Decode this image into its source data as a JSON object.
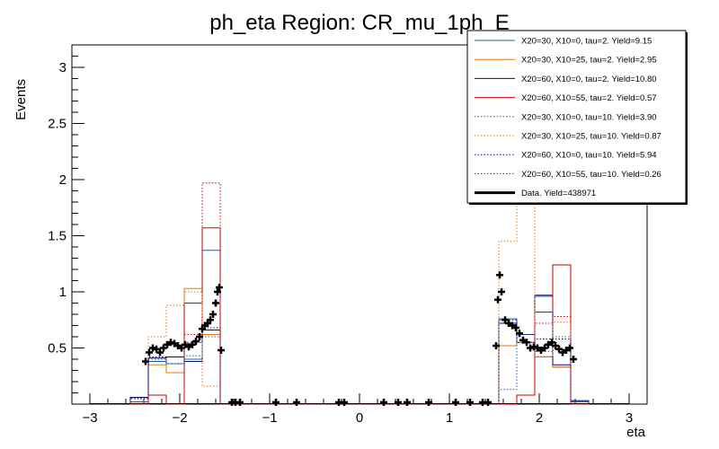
{
  "chart_data": {
    "type": "line",
    "title": "ph_eta Region: CR_mu_1ph_E",
    "xlabel": "eta",
    "ylabel": "Events",
    "xlim": [
      -3.2,
      3.2
    ],
    "ylim": [
      0,
      3.2
    ],
    "x_ticks": [
      -3,
      -2,
      -1,
      0,
      1,
      2,
      3
    ],
    "x_tick_labels": [
      "−3",
      "−2",
      "−1",
      "0",
      "1",
      "2",
      "3"
    ],
    "y_ticks": [
      0.5,
      1,
      1.5,
      2,
      2.5,
      3
    ],
    "y_tick_labels": [
      "0.5",
      "1",
      "1.5",
      "2",
      "2.5",
      "3"
    ],
    "legend_position": "top-right",
    "bin_edges": [
      -2.55,
      -2.35,
      -2.15,
      -1.95,
      -1.75,
      -1.55,
      1.55,
      1.75,
      1.95,
      2.15,
      2.35,
      2.55
    ],
    "series": [
      {
        "name": "X20=30, X10=0, tau=2. Yield=9.15",
        "color": "#1f5fa8",
        "style": "solid",
        "values": [
          0.02,
          0.38,
          0.28,
          0.4,
          1.37,
          0,
          0.76,
          0.55,
          0.96,
          0.33,
          0.02
        ]
      },
      {
        "name": "X20=30, X10=25, tau=2. Yield=2.95",
        "color": "#e8760e",
        "style": "solid",
        "values": [
          0,
          0.35,
          0.28,
          1.03,
          0.62,
          0,
          0.52,
          0.55,
          0.42,
          0.33,
          0
        ]
      },
      {
        "name": "X20=60, X10=0, tau=2. Yield=10.80",
        "color": "#0a0a6e",
        "style": "solid",
        "values": [
          0.06,
          0.41,
          0.42,
          0.38,
          0.66,
          0,
          0.72,
          0.62,
          0.97,
          0.35,
          0.03
        ]
      },
      {
        "name": "X20=60, X10=55, tau=2. Yield=0.57",
        "color": "#cc0000",
        "style": "solid",
        "values": [
          0,
          0.08,
          0,
          0.9,
          1.57,
          0,
          0,
          0.08,
          0.82,
          1.24,
          0
        ]
      },
      {
        "name": "X20=30, X10=0, tau=10. Yield=3.90",
        "color": "#1f5fa8",
        "style": "dotted",
        "values": [
          0.05,
          0.4,
          0.36,
          0.43,
          0.6,
          0,
          0.13,
          0.62,
          0.47,
          0.6,
          0.03
        ]
      },
      {
        "name": "X20=30, X10=25, tau=10. Yield=0.87",
        "color": "#e8760e",
        "style": "dotted",
        "values": [
          0,
          0.6,
          0.88,
          1.0,
          0.16,
          0,
          1.45,
          1.8,
          0.43,
          0.73,
          0
        ]
      },
      {
        "name": "X20=60, X10=0, tau=10. Yield=5.94",
        "color": "#0a0a6e",
        "style": "dotted",
        "values": [
          0.05,
          0.42,
          0.36,
          0.55,
          0.68,
          0,
          0.75,
          0.55,
          0.58,
          0.58,
          0.03
        ]
      },
      {
        "name": "X20=60, X10=55, tau=10. Yield=0.26",
        "color": "#cc0000",
        "style": "dotted",
        "values": [
          0,
          0.08,
          0,
          0.62,
          1.97,
          0,
          0,
          0.08,
          0.72,
          0.78,
          0
        ]
      }
    ],
    "data_series": {
      "name": "Data. Yield=438971",
      "color": "#000000",
      "points": [
        [
          -2.38,
          0.38
        ],
        [
          -2.34,
          0.46
        ],
        [
          -2.3,
          0.5
        ],
        [
          -2.26,
          0.49
        ],
        [
          -2.22,
          0.46
        ],
        [
          -2.18,
          0.5
        ],
        [
          -2.14,
          0.53
        ],
        [
          -2.1,
          0.55
        ],
        [
          -2.06,
          0.54
        ],
        [
          -2.02,
          0.52
        ],
        [
          -1.98,
          0.5
        ],
        [
          -1.94,
          0.53
        ],
        [
          -1.9,
          0.51
        ],
        [
          -1.86,
          0.53
        ],
        [
          -1.82,
          0.56
        ],
        [
          -1.78,
          0.6
        ],
        [
          -1.75,
          0.67
        ],
        [
          -1.72,
          0.7
        ],
        [
          -1.69,
          0.72
        ],
        [
          -1.66,
          0.75
        ],
        [
          -1.63,
          0.8
        ],
        [
          -1.6,
          0.9
        ],
        [
          -1.58,
          1.0
        ],
        [
          -1.56,
          1.04
        ],
        [
          -1.54,
          0.48
        ],
        [
          -1.42,
          0.0
        ],
        [
          -1.38,
          0.0
        ],
        [
          -1.33,
          0.0
        ],
        [
          -0.93,
          0.0
        ],
        [
          -0.7,
          0.0
        ],
        [
          -0.23,
          0.0
        ],
        [
          -0.17,
          0.0
        ],
        [
          0.27,
          0.0
        ],
        [
          0.43,
          0.0
        ],
        [
          0.53,
          0.0
        ],
        [
          0.77,
          0.0
        ],
        [
          1.07,
          0.0
        ],
        [
          1.23,
          0.0
        ],
        [
          1.37,
          0.0
        ],
        [
          1.43,
          0.0
        ],
        [
          1.52,
          0.52
        ],
        [
          1.54,
          0.93
        ],
        [
          1.56,
          1.15
        ],
        [
          1.58,
          1.0
        ],
        [
          1.62,
          0.75
        ],
        [
          1.66,
          0.72
        ],
        [
          1.7,
          0.7
        ],
        [
          1.74,
          0.68
        ],
        [
          1.78,
          0.63
        ],
        [
          1.82,
          0.57
        ],
        [
          1.86,
          0.55
        ],
        [
          1.9,
          0.5
        ],
        [
          1.94,
          0.51
        ],
        [
          1.98,
          0.5
        ],
        [
          2.02,
          0.48
        ],
        [
          2.06,
          0.5
        ],
        [
          2.1,
          0.53
        ],
        [
          2.14,
          0.55
        ],
        [
          2.18,
          0.52
        ],
        [
          2.22,
          0.49
        ],
        [
          2.26,
          0.46
        ],
        [
          2.3,
          0.48
        ],
        [
          2.34,
          0.5
        ],
        [
          2.38,
          0.4
        ]
      ]
    }
  }
}
